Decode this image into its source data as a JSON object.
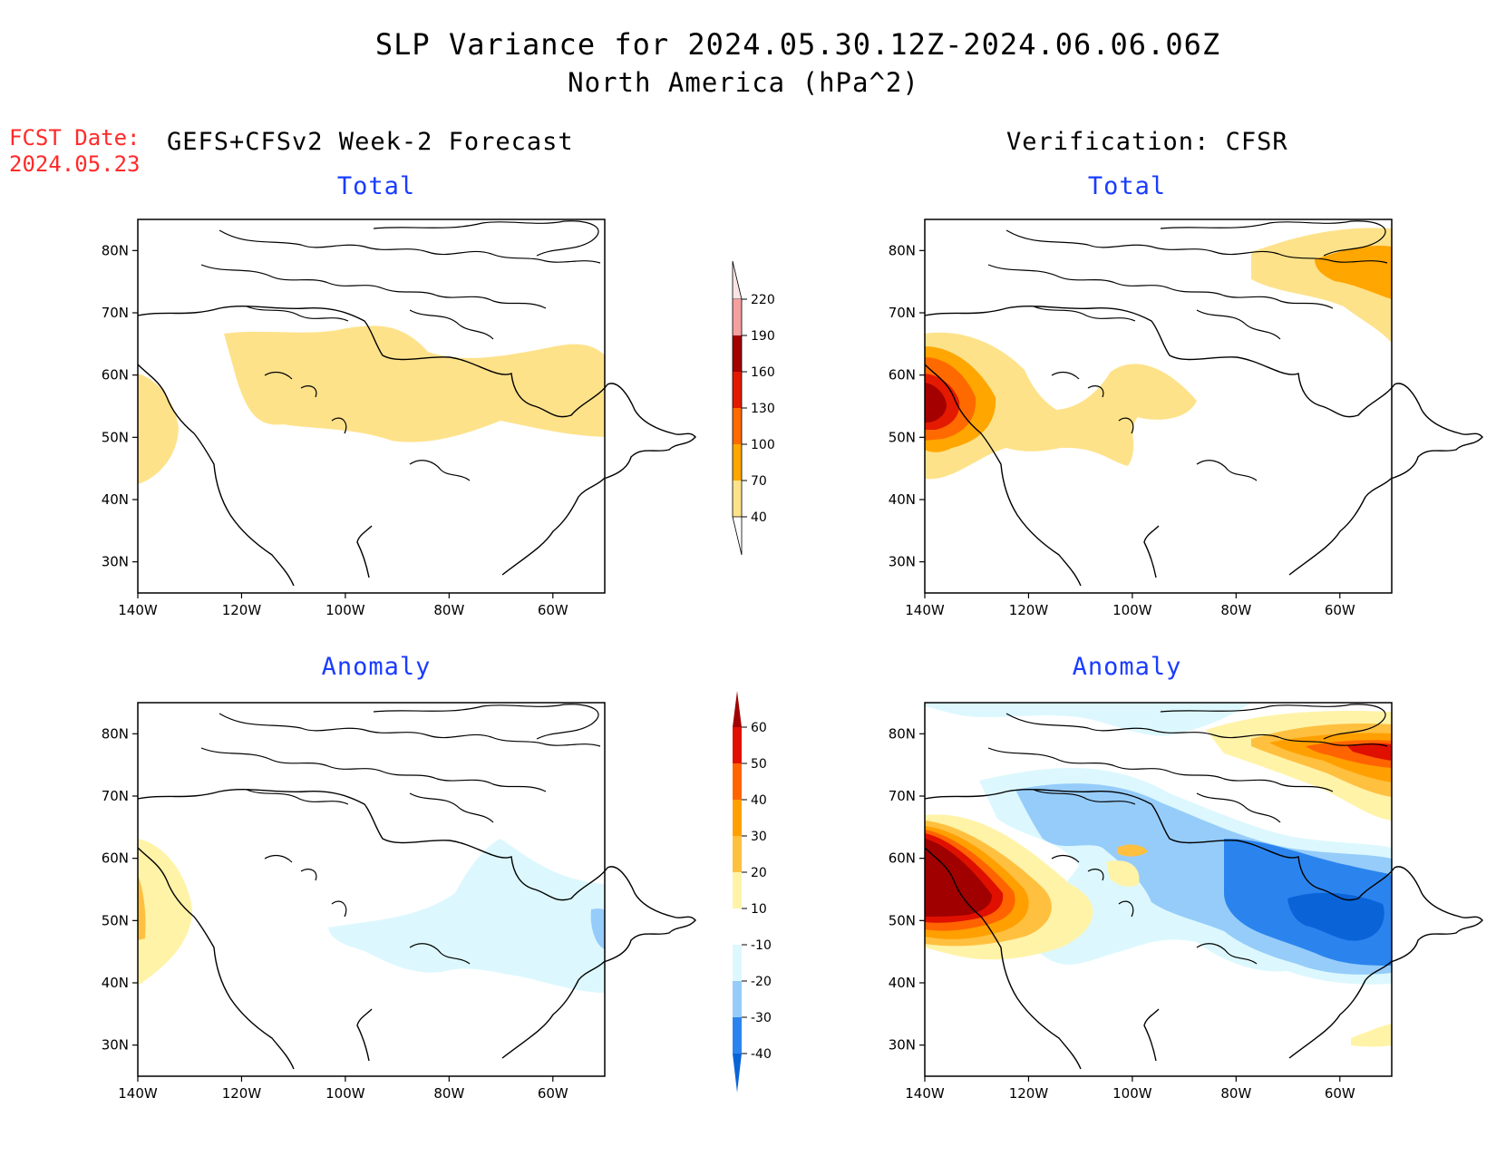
{
  "title": {
    "line1": "SLP Variance for 2024.05.30.12Z-2024.06.06.06Z",
    "line2": "North America (hPa^2)"
  },
  "forecast_date": {
    "label": "FCST Date:",
    "value": "2024.05.23"
  },
  "column_headers": {
    "left": "GEFS+CFSv2 Week-2 Forecast",
    "right": "Verification: CFSR"
  },
  "panels": {
    "forecast_total": {
      "title": "Total"
    },
    "forecast_anomaly": {
      "title": "Anomaly"
    },
    "verification_total": {
      "title": "Total"
    },
    "verification_anomaly": {
      "title": "Anomaly"
    }
  },
  "axes": {
    "lon_labels": [
      "140W",
      "120W",
      "100W",
      "80W",
      "60W"
    ],
    "lat_labels": [
      "30N",
      "40N",
      "50N",
      "60N",
      "70N",
      "80N"
    ],
    "lon_range": [
      -140,
      -50
    ],
    "lat_range": [
      25,
      85
    ]
  },
  "colorbars": {
    "total": {
      "levels": [
        "40",
        "70",
        "100",
        "130",
        "160",
        "190",
        "220"
      ],
      "colors": [
        "#fee28a",
        "#ffa600",
        "#ff6a00",
        "#e41a00",
        "#a40000",
        "#f4a0a0",
        "#fde4e4"
      ]
    },
    "anomaly": {
      "levels": [
        "-40",
        "-30",
        "-20",
        "-10",
        "10",
        "20",
        "30",
        "40",
        "50",
        "60"
      ],
      "colors": [
        "#0a64d8",
        "#2b84ee",
        "#96ccfa",
        "#dcf8fe",
        "#ffffff",
        "#fff3a8",
        "#ffc040",
        "#ffa000",
        "#ff6400",
        "#e01000",
        "#a00000"
      ]
    }
  },
  "colors": {
    "title_text": "#000000",
    "forecast_date": "#ff2a2a",
    "panel_title": "#1a3cff"
  }
}
